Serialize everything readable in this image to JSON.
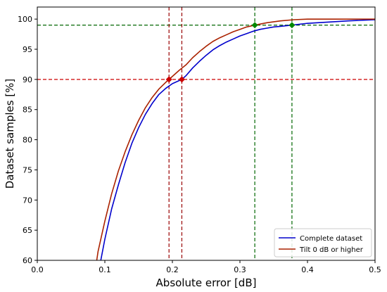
{
  "chart_data": {
    "type": "line",
    "xlabel": "Absolute error [dB]",
    "ylabel": "Dataset samples [%]",
    "xlim": [
      0.0,
      0.5
    ],
    "ylim": [
      60,
      102
    ],
    "x_ticks": [
      "0.0",
      "0.1",
      "0.2",
      "0.3",
      "0.4",
      "0.5"
    ],
    "y_ticks": [
      "60",
      "65",
      "70",
      "75",
      "80",
      "85",
      "90",
      "95",
      "100"
    ],
    "grid": false,
    "legend_placement": "lower-right",
    "series": [
      {
        "name": "Complete dataset",
        "color": "#0000cc",
        "x": [
          0.094,
          0.1,
          0.11,
          0.12,
          0.13,
          0.14,
          0.15,
          0.16,
          0.17,
          0.18,
          0.19,
          0.2,
          0.214,
          0.22,
          0.23,
          0.24,
          0.25,
          0.26,
          0.27,
          0.28,
          0.29,
          0.3,
          0.31,
          0.32,
          0.33,
          0.34,
          0.35,
          0.36,
          0.377,
          0.4,
          0.43,
          0.46,
          0.5
        ],
        "y": [
          60.0,
          63.5,
          68.5,
          72.5,
          76.2,
          79.4,
          82.0,
          84.2,
          86.0,
          87.5,
          88.5,
          89.3,
          90.0,
          90.6,
          91.9,
          93.0,
          94.0,
          94.9,
          95.6,
          96.2,
          96.7,
          97.2,
          97.6,
          98.0,
          98.3,
          98.5,
          98.7,
          98.8,
          99.0,
          99.3,
          99.5,
          99.7,
          99.9
        ]
      },
      {
        "name": "Tilt 0 dB or higher",
        "color": "#aa2200",
        "x": [
          0.088,
          0.09,
          0.1,
          0.11,
          0.12,
          0.13,
          0.14,
          0.15,
          0.16,
          0.17,
          0.18,
          0.19,
          0.195,
          0.21,
          0.22,
          0.23,
          0.24,
          0.25,
          0.26,
          0.27,
          0.28,
          0.29,
          0.3,
          0.31,
          0.322,
          0.34,
          0.36,
          0.38,
          0.4,
          0.45,
          0.5
        ],
        "y": [
          60.0,
          61.5,
          66.5,
          71.0,
          74.8,
          78.0,
          80.8,
          83.2,
          85.3,
          87.0,
          88.4,
          89.5,
          90.0,
          91.5,
          92.4,
          93.6,
          94.6,
          95.5,
          96.3,
          96.9,
          97.4,
          97.9,
          98.3,
          98.7,
          99.0,
          99.4,
          99.7,
          99.9,
          100.0,
          100.0,
          100.0
        ]
      }
    ],
    "reference_lines": {
      "horizontal": [
        {
          "y": 90,
          "color": "#cc0000"
        },
        {
          "y": 99,
          "color": "#006600"
        }
      ],
      "vertical": [
        {
          "x": 0.195,
          "color": "#990000"
        },
        {
          "x": 0.214,
          "color": "#990000"
        },
        {
          "x": 0.322,
          "color": "#006600"
        },
        {
          "x": 0.377,
          "color": "#006600"
        }
      ]
    },
    "markers": [
      {
        "x": 0.195,
        "y": 90,
        "color": "#cc0000"
      },
      {
        "x": 0.214,
        "y": 90,
        "color": "#cc0000"
      },
      {
        "x": 0.322,
        "y": 99,
        "color": "#008800"
      },
      {
        "x": 0.377,
        "y": 99,
        "color": "#008800"
      }
    ]
  }
}
